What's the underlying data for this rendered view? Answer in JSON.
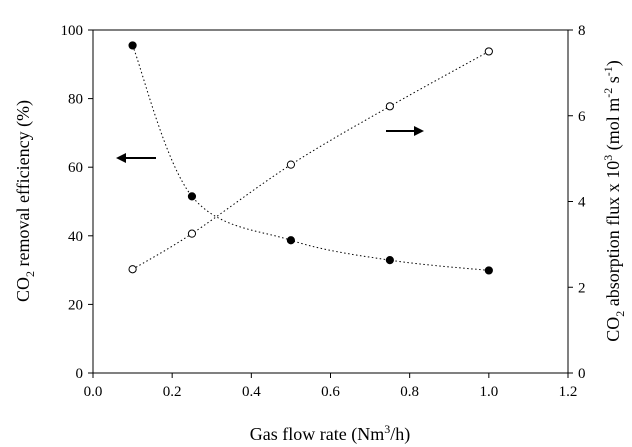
{
  "chart_data": {
    "type": "scatter",
    "xlabel": {
      "prefix": "Gas flow rate (Nm",
      "sup": "3",
      "suffix": "/h)"
    },
    "ylabel_left": {
      "p1": "CO",
      "sub": "2",
      "p2": " removal efficiency (%)"
    },
    "ylabel_right": {
      "p1": "CO",
      "sub": "2",
      "p2": " absorption flux x 10",
      "sup1": "3",
      "p3": " (mol m",
      "sup2": "-2",
      "p4": " s",
      "sup3": "-1",
      "p5": ")"
    },
    "xlim": [
      0.0,
      1.2
    ],
    "ylim_left": [
      0,
      100
    ],
    "ylim_right": [
      0,
      8
    ],
    "x_ticks": [
      "0.0",
      "0.2",
      "0.4",
      "0.6",
      "0.8",
      "1.0",
      "1.2"
    ],
    "x_tick_values": [
      0.0,
      0.2,
      0.4,
      0.6,
      0.8,
      1.0,
      1.2
    ],
    "y_left_ticks": [
      "0",
      "20",
      "40",
      "60",
      "80",
      "100"
    ],
    "y_left_tick_values": [
      0,
      20,
      40,
      60,
      80,
      100
    ],
    "y_right_ticks": [
      "0",
      "2",
      "4",
      "6",
      "8"
    ],
    "y_right_tick_values": [
      0,
      2,
      4,
      6,
      8
    ],
    "grid": false,
    "series": [
      {
        "axis": "left",
        "marker": "filled-circle",
        "line": "dotted",
        "x": [
          0.1,
          0.25,
          0.5,
          0.75,
          1.0
        ],
        "y": [
          95.5,
          51.5,
          38.7,
          32.9,
          29.9
        ]
      },
      {
        "axis": "right",
        "marker": "open-circle",
        "line": "dotted",
        "x": [
          0.1,
          0.25,
          0.5,
          0.75,
          1.0
        ],
        "y": [
          2.42,
          3.25,
          4.86,
          6.22,
          7.5
        ]
      }
    ],
    "annotations": [
      {
        "type": "arrow",
        "direction": "left",
        "points_to": "left axis"
      },
      {
        "type": "arrow",
        "direction": "right",
        "points_to": "right axis"
      }
    ]
  }
}
